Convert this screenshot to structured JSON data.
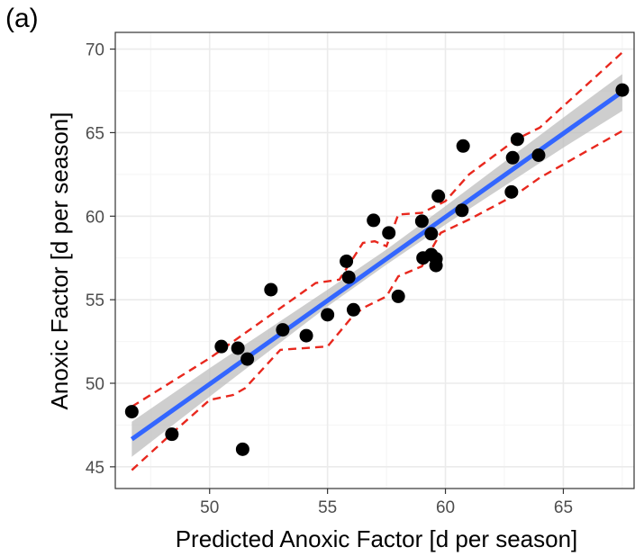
{
  "panel_label": "(a)",
  "chart_data": {
    "type": "scatter",
    "title": "",
    "xlabel": "Predicted Anoxic Factor [d per season]",
    "ylabel": "Anoxic Factor [d per season]",
    "xlim": [
      46.0,
      68.0
    ],
    "ylim": [
      43.7,
      71.0
    ],
    "xticks": [
      50,
      55,
      60,
      65
    ],
    "yticks": [
      45,
      50,
      55,
      60,
      65,
      70
    ],
    "grid": true,
    "colors": {
      "points": "#000000",
      "fit_line": "#3366ff",
      "confidence_band": "#bdbdbd",
      "interval_lines": "#e8281e",
      "grid_major": "#ebebeb",
      "grid_minor": "#f4f4f4",
      "axis": "#333333"
    },
    "points": [
      {
        "x": 46.7,
        "y": 48.3
      },
      {
        "x": 48.4,
        "y": 46.95
      },
      {
        "x": 50.5,
        "y": 52.2
      },
      {
        "x": 51.2,
        "y": 52.1
      },
      {
        "x": 51.4,
        "y": 46.05
      },
      {
        "x": 51.6,
        "y": 51.45
      },
      {
        "x": 52.6,
        "y": 55.6
      },
      {
        "x": 53.1,
        "y": 53.2
      },
      {
        "x": 54.1,
        "y": 52.85
      },
      {
        "x": 55.0,
        "y": 54.1
      },
      {
        "x": 55.8,
        "y": 57.3
      },
      {
        "x": 55.9,
        "y": 56.35
      },
      {
        "x": 56.1,
        "y": 54.4
      },
      {
        "x": 56.95,
        "y": 59.75
      },
      {
        "x": 57.6,
        "y": 59.0
      },
      {
        "x": 58.0,
        "y": 55.2
      },
      {
        "x": 59.0,
        "y": 59.7
      },
      {
        "x": 59.05,
        "y": 57.5
      },
      {
        "x": 59.4,
        "y": 57.7
      },
      {
        "x": 59.4,
        "y": 58.95
      },
      {
        "x": 59.6,
        "y": 57.45
      },
      {
        "x": 59.6,
        "y": 57.05
      },
      {
        "x": 59.7,
        "y": 61.2
      },
      {
        "x": 60.7,
        "y": 60.35
      },
      {
        "x": 60.75,
        "y": 64.2
      },
      {
        "x": 62.8,
        "y": 61.45
      },
      {
        "x": 62.85,
        "y": 63.5
      },
      {
        "x": 63.05,
        "y": 64.6
      },
      {
        "x": 63.95,
        "y": 63.65
      },
      {
        "x": 67.5,
        "y": 67.55
      }
    ],
    "fit_line": {
      "x": [
        46.7,
        67.5
      ],
      "y": [
        46.65,
        67.45
      ]
    },
    "confidence_band": {
      "x": [
        46.7,
        50,
        55,
        57.5,
        60,
        65,
        67.5
      ],
      "lower": [
        45.6,
        49.2,
        54.6,
        57.1,
        59.5,
        64.1,
        66.3
      ],
      "upper": [
        47.7,
        50.9,
        55.6,
        58.0,
        60.6,
        65.9,
        68.5
      ]
    },
    "interval_lines": {
      "upper": {
        "x": [
          46.7,
          50,
          51.5,
          53,
          54.5,
          55.5,
          56.5,
          57.0,
          57.5,
          58.0,
          59.0,
          60.0,
          61.0,
          63.0,
          64.0,
          67.5
        ],
        "y": [
          48.6,
          51.5,
          53.0,
          54.5,
          56.0,
          56.2,
          58.4,
          58.5,
          58.2,
          60.1,
          60.2,
          60.9,
          62.5,
          64.6,
          65.3,
          69.8
        ]
      },
      "lower": {
        "x": [
          46.7,
          48.4,
          50,
          51,
          51.5,
          53,
          55,
          56,
          56.5,
          57.5,
          58.0,
          59.0,
          59.8,
          61.0,
          63.0,
          64.0,
          67.5
        ],
        "y": [
          44.8,
          47.0,
          49.0,
          49.3,
          49.7,
          52.0,
          52.2,
          53.9,
          54.5,
          55.2,
          56.4,
          57.0,
          59.0,
          59.8,
          61.3,
          62.3,
          65.1
        ]
      }
    }
  }
}
